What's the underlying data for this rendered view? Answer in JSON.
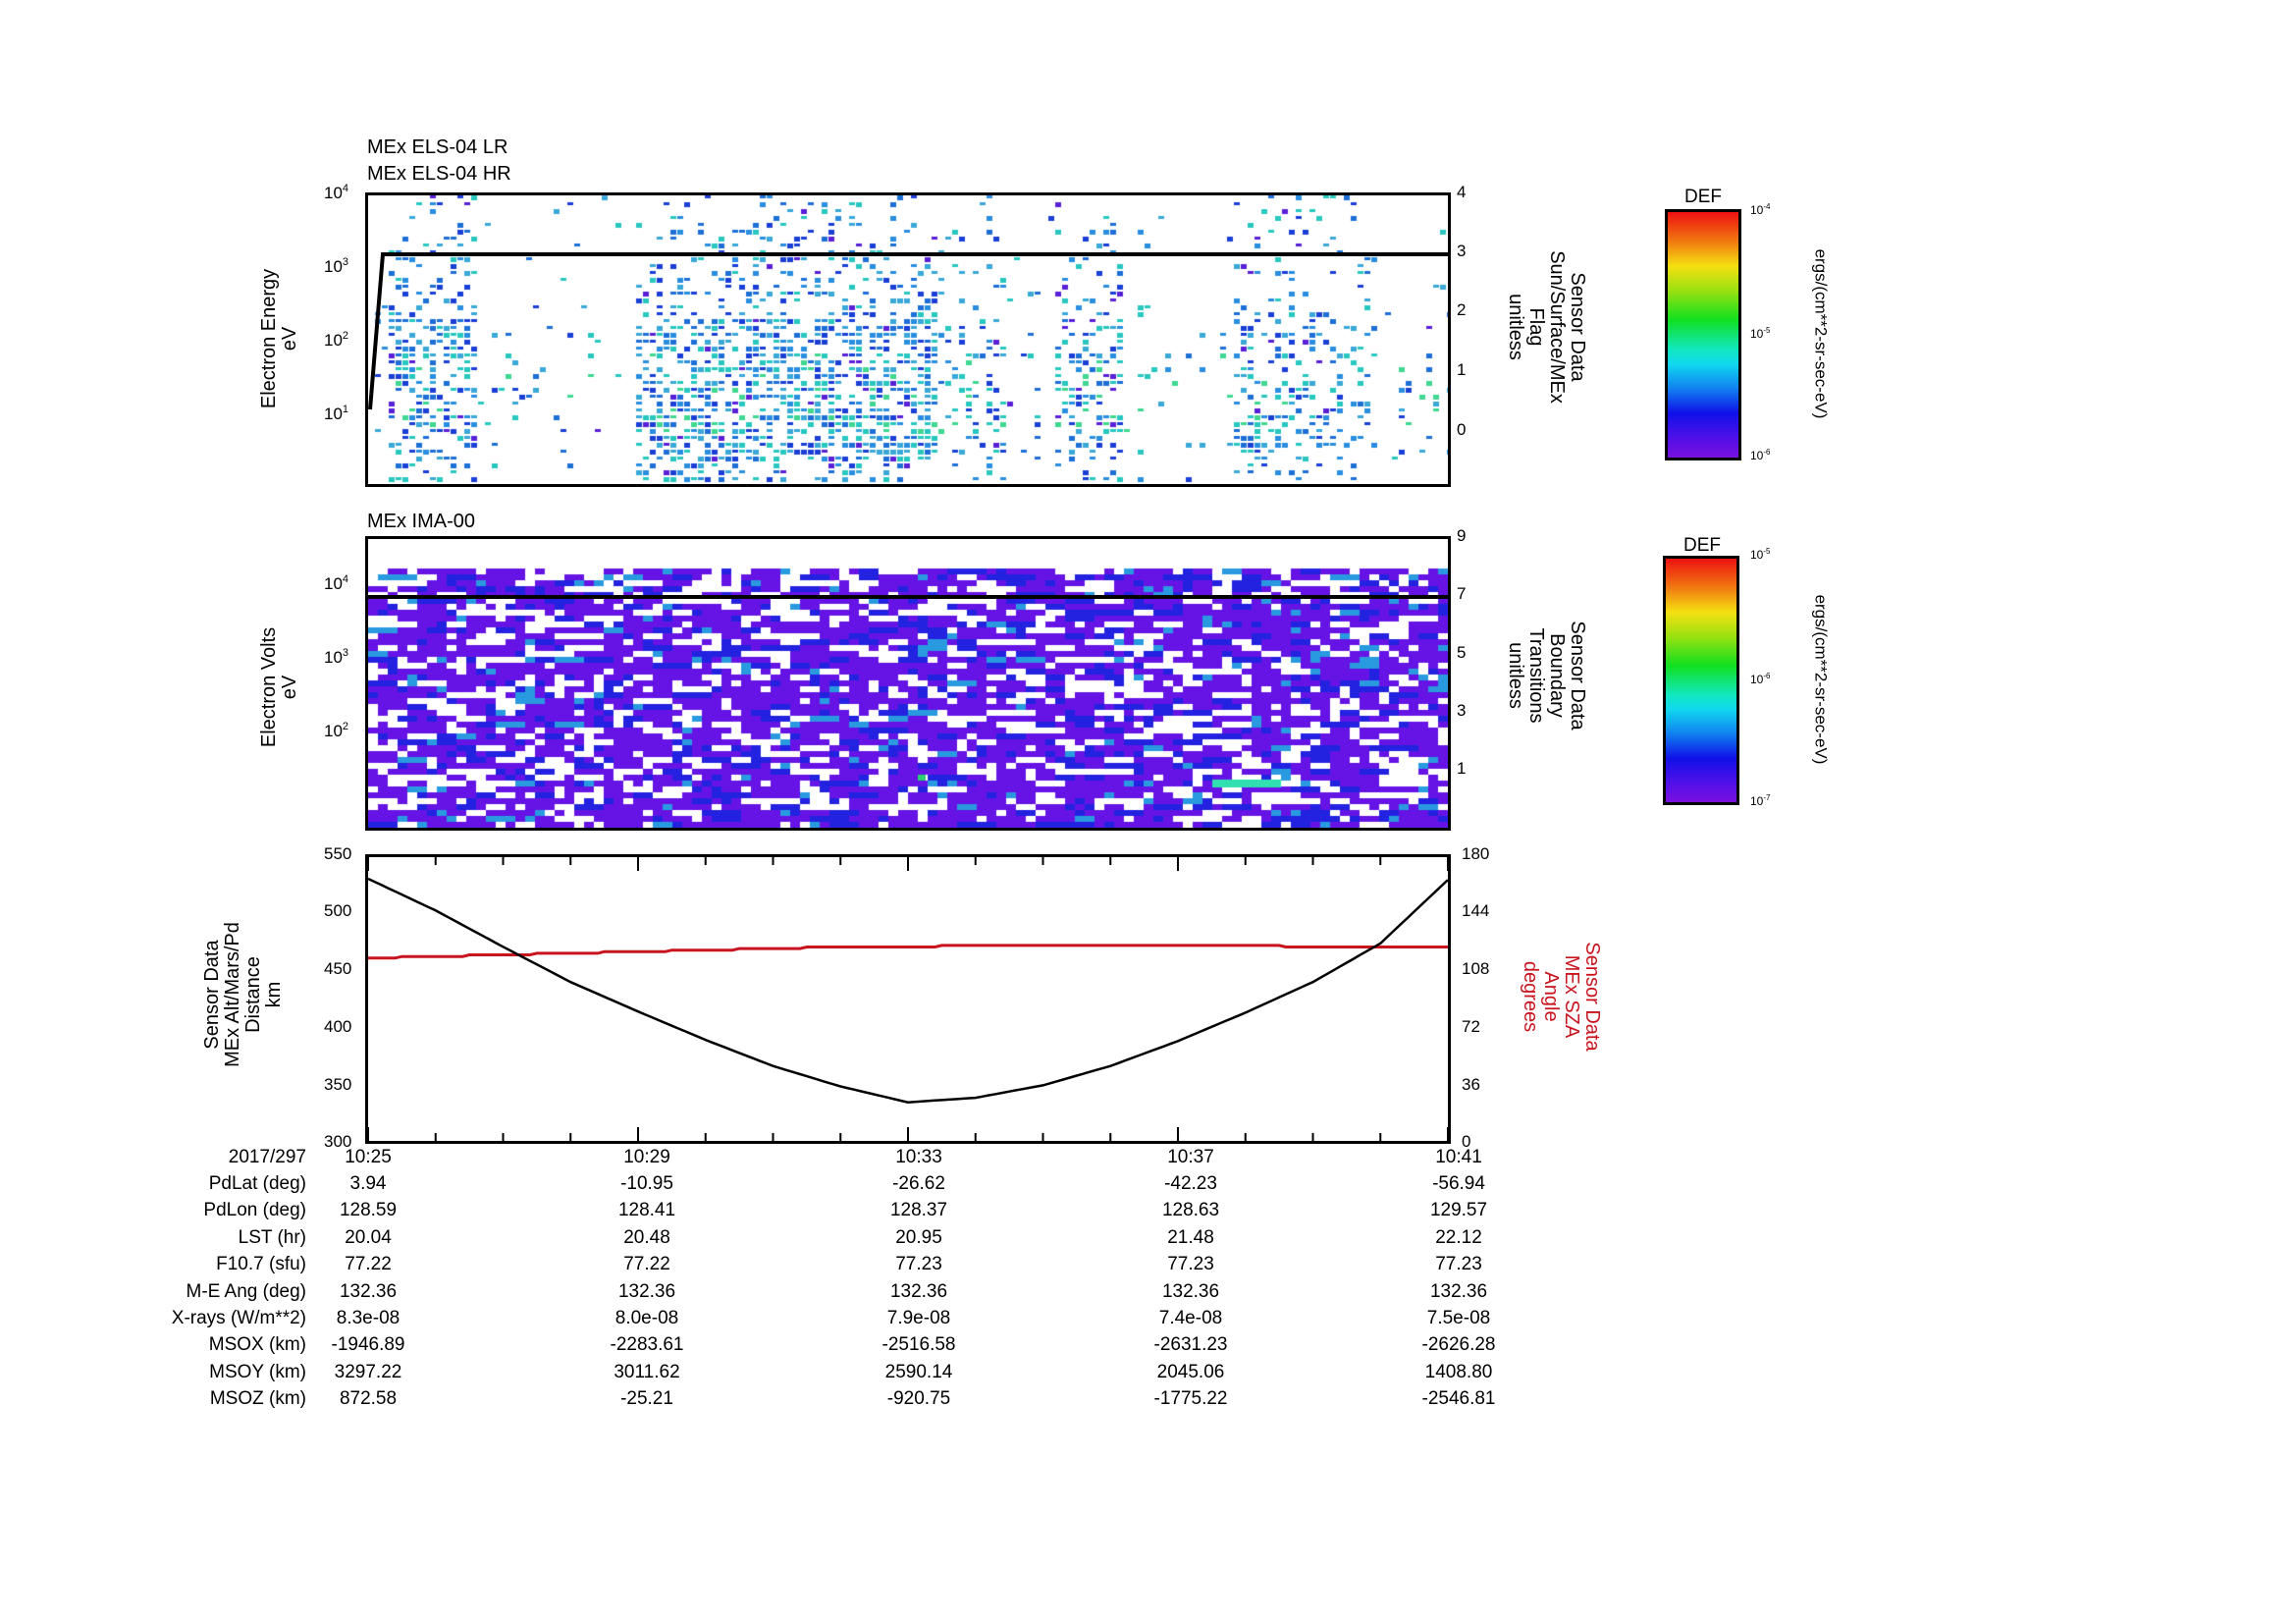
{
  "panel1": {
    "titles": [
      "MEx ELS-04 LR",
      "MEx ELS-04 HR"
    ],
    "ylabel": [
      "Electron Energy",
      "eV"
    ],
    "yticks": [
      {
        "base": "10",
        "exp": "4"
      },
      {
        "base": "10",
        "exp": "3"
      },
      {
        "base": "10",
        "exp": "2"
      },
      {
        "base": "10",
        "exp": "1"
      }
    ],
    "y2label": [
      "Sensor Data",
      "Sun/Surface/MEx",
      "Flag",
      "unitless"
    ],
    "y2ticks": [
      "4",
      "3",
      "2",
      "1",
      "0"
    ],
    "colorbar": {
      "title": "DEF",
      "ticks": [
        {
          "base": "10",
          "exp": "-4"
        },
        {
          "base": "10",
          "exp": "-5"
        },
        {
          "base": "10",
          "exp": "-6"
        }
      ],
      "units": "ergs/(cm**2-sr-sec-eV)"
    }
  },
  "panel2": {
    "titles": [
      "MEx IMA-00"
    ],
    "ylabel": [
      "Electron Volts",
      "eV"
    ],
    "yticks": [
      {
        "base": "10",
        "exp": "4"
      },
      {
        "base": "10",
        "exp": "3"
      },
      {
        "base": "10",
        "exp": "2"
      }
    ],
    "y2label": [
      "Sensor Data",
      "Boundary",
      "Transitions",
      "unitless"
    ],
    "y2ticks": [
      "9",
      "7",
      "5",
      "3",
      "1"
    ],
    "colorbar": {
      "title": "DEF",
      "ticks": [
        {
          "base": "10",
          "exp": "-5"
        },
        {
          "base": "10",
          "exp": "-6"
        },
        {
          "base": "10",
          "exp": "-7"
        }
      ],
      "units": "ergs/(cm**2-sr-sec-eV)"
    }
  },
  "panel3": {
    "ylabel": [
      "Sensor Data",
      "MEx Alt/Mars/Pd",
      "Distance",
      "km"
    ],
    "yticks": [
      "550",
      "500",
      "450",
      "400",
      "350",
      "300"
    ],
    "y2label": [
      "Sensor Data",
      "MEx SZA",
      "Angle",
      "degrees"
    ],
    "y2ticks": [
      "180",
      "144",
      "108",
      "72",
      "36",
      "0"
    ]
  },
  "xaxis": {
    "date": "2017/297",
    "ticks": [
      "10:25",
      "10:29",
      "10:33",
      "10:37",
      "10:41"
    ]
  },
  "table": {
    "rows": [
      {
        "label": "PdLat (deg)",
        "values": [
          "3.94",
          "-10.95",
          "-26.62",
          "-42.23",
          "-56.94"
        ]
      },
      {
        "label": "PdLon (deg)",
        "values": [
          "128.59",
          "128.41",
          "128.37",
          "128.63",
          "129.57"
        ]
      },
      {
        "label": "LST (hr)",
        "values": [
          "20.04",
          "20.48",
          "20.95",
          "21.48",
          "22.12"
        ]
      },
      {
        "label": "F10.7 (sfu)",
        "values": [
          "77.22",
          "77.22",
          "77.23",
          "77.23",
          "77.23"
        ]
      },
      {
        "label": "M-E Ang (deg)",
        "values": [
          "132.36",
          "132.36",
          "132.36",
          "132.36",
          "132.36"
        ]
      },
      {
        "label": "X-rays (W/m**2)",
        "values": [
          "8.3e-08",
          "8.0e-08",
          "7.9e-08",
          "7.4e-08",
          "7.5e-08"
        ]
      },
      {
        "label": "MSOX (km)",
        "values": [
          "-1946.89",
          "-2283.61",
          "-2516.58",
          "-2631.23",
          "-2626.28"
        ]
      },
      {
        "label": "MSOY (km)",
        "values": [
          "3297.22",
          "3011.62",
          "2590.14",
          "2045.06",
          "1408.80"
        ]
      },
      {
        "label": "MSOZ (km)",
        "values": [
          "872.58",
          "-25.21",
          "-920.75",
          "-1775.22",
          "-2546.81"
        ]
      }
    ]
  },
  "colors": {
    "altitude_line": "#000000",
    "sza_line": "#c8141e",
    "flag_line": "#000000"
  },
  "chart_data": [
    {
      "type": "heatmap",
      "title": "MEx ELS-04 LR / MEx ELS-04 HR",
      "xlabel": "UT 2017/297",
      "ylabel": "Electron Energy (eV)",
      "yscale": "log",
      "ylim": [
        2,
        10000
      ],
      "x_ticks": [
        "10:25",
        "10:29",
        "10:33",
        "10:37",
        "10:41"
      ],
      "colorbar": {
        "label": "DEF ergs/(cm**2-sr-sec-eV)",
        "range": [
          1e-06,
          0.0001
        ],
        "scale": "log"
      },
      "overlay": {
        "name": "Sensor Data Sun/Surface/MEx Flag (unitless)",
        "axis": "right",
        "ylim": [
          -1,
          4
        ],
        "x": [
          "10:25:00",
          "10:25:15",
          "10:41:00"
        ],
        "values": [
          0,
          3,
          3
        ]
      },
      "notes": "Sparse blue/cyan/green counts concentrated 10–300 eV; dense bursts near 10:25, 10:28–10:31, 10:36, 10:39"
    },
    {
      "type": "heatmap",
      "title": "MEx IMA-00",
      "xlabel": "UT 2017/297",
      "ylabel": "Electron Volts (eV)",
      "yscale": "log",
      "ylim": [
        10,
        30000
      ],
      "x_ticks": [
        "10:25",
        "10:29",
        "10:33",
        "10:37",
        "10:41"
      ],
      "colorbar": {
        "label": "DEF ergs/(cm**2-sr-sec-eV)",
        "range": [
          1e-07,
          1e-05
        ],
        "scale": "log"
      },
      "overlay": {
        "name": "Sensor Data Boundary Transitions (unitless)",
        "axis": "right",
        "ylim": [
          -1,
          9
        ],
        "x": [
          "10:25",
          "10:41"
        ],
        "values": [
          7,
          7
        ]
      },
      "notes": "Mostly violet/blue background-level counts across all energies"
    },
    {
      "type": "line",
      "xlabel": "UT 2017/297",
      "x": [
        "10:25",
        "10:26",
        "10:27",
        "10:28",
        "10:29",
        "10:30",
        "10:31",
        "10:32",
        "10:33",
        "10:34",
        "10:35",
        "10:36",
        "10:37",
        "10:38",
        "10:39",
        "10:40",
        "10:41"
      ],
      "series": [
        {
          "name": "MEx Alt/Mars/Pd Distance (km)",
          "axis": "left",
          "values": [
            531,
            503,
            471,
            440,
            414,
            389,
            366,
            348,
            334,
            338,
            349,
            366,
            388,
            413,
            440,
            474,
            530
          ]
        },
        {
          "name": "MEx SZA Angle (degrees)",
          "axis": "right",
          "values": [
            116,
            117,
            118,
            119,
            120,
            121,
            122,
            123,
            123,
            124,
            124,
            124,
            124,
            124,
            123,
            123,
            123
          ]
        }
      ],
      "ylim": [
        300,
        550
      ],
      "y2lim": [
        0,
        180
      ],
      "yticks": [
        300,
        350,
        400,
        450,
        500,
        550
      ],
      "y2ticks": [
        0,
        36,
        72,
        108,
        144,
        180
      ]
    }
  ]
}
